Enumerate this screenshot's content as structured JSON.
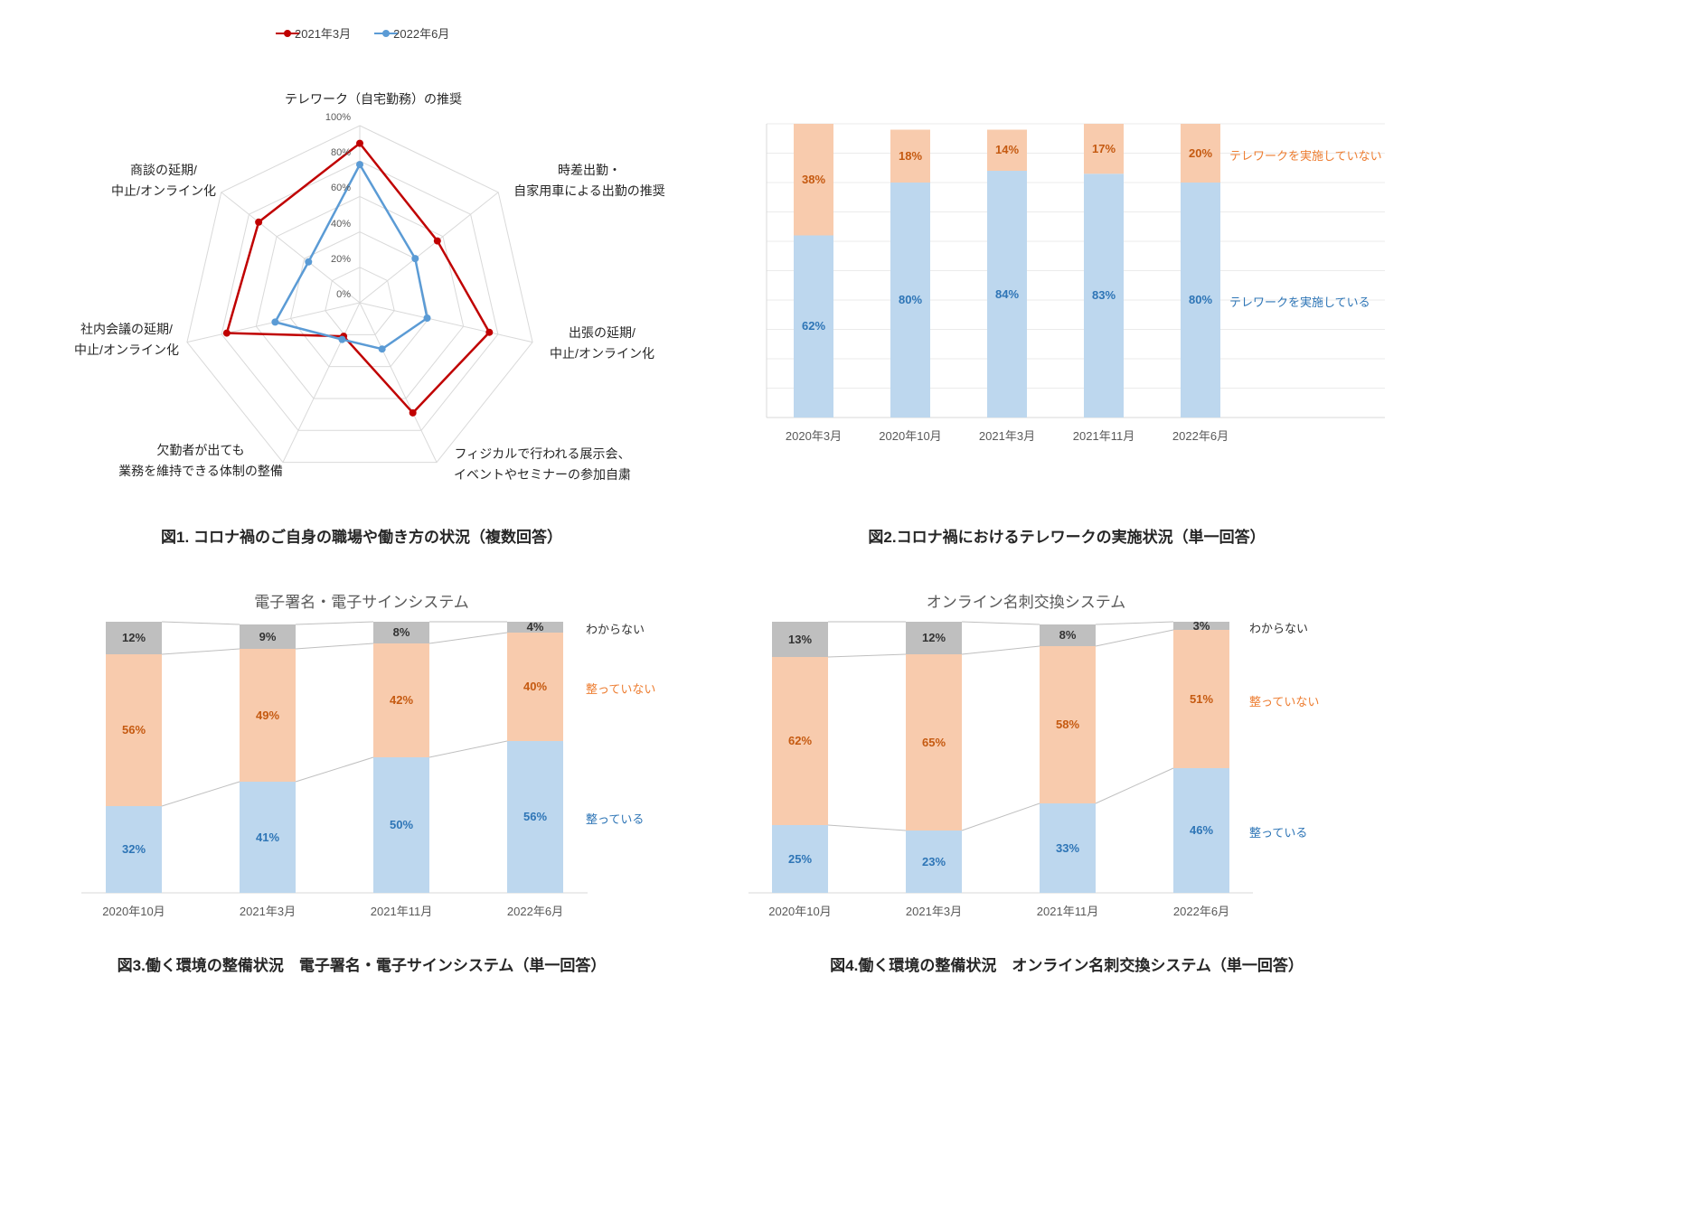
{
  "page": {
    "background": "#ffffff"
  },
  "colors": {
    "red_series": "#c00000",
    "blue_series": "#5b9bd5",
    "bar_blue": "#bdd7ee",
    "bar_orange": "#f8cbad",
    "bar_gray": "#bfbfbf",
    "blue_label": "#2e75b6",
    "orange_label": "#c55a11",
    "orange_annotation": "#ed7d31",
    "grid": "#d9d9d9",
    "text_dark": "#262626",
    "text_gray": "#595959"
  },
  "chart_data": [
    {
      "id": "fig1",
      "type": "radar",
      "caption": "図1. コロナ禍のご自身の職場や働き方の状況（複数回答）",
      "rmax": 100,
      "ticks": [
        "0%",
        "20%",
        "40%",
        "60%",
        "80%",
        "100%"
      ],
      "axes": [
        {
          "lines": [
            "テレワーク（自宅勤務）の推奨"
          ]
        },
        {
          "lines": [
            "時差出勤・",
            "自家用車による出勤の推奨"
          ]
        },
        {
          "lines": [
            "出張の延期/",
            "中止/オンライン化"
          ]
        },
        {
          "lines": [
            "フィジカルで行われる展示会、",
            "イベントやセミナーの参加自粛"
          ]
        },
        {
          "lines": [
            "欠勤者が出ても",
            "業務を維持できる体制の整備"
          ]
        },
        {
          "lines": [
            "社内会議の延期/",
            "中止/オンライン化"
          ]
        },
        {
          "lines": [
            "商談の延期/",
            "中止/オンライン化"
          ]
        }
      ],
      "series": [
        {
          "name": "2021年3月",
          "color": "#c00000",
          "values": [
            90,
            56,
            75,
            69,
            21,
            77,
            73
          ]
        },
        {
          "name": "2022年6月",
          "color": "#5b9bd5",
          "values": [
            78,
            40,
            39,
            29,
            23,
            49,
            37
          ]
        }
      ],
      "legend_position": "top"
    },
    {
      "id": "fig2",
      "type": "bar",
      "variant": "stacked",
      "caption": "図2.コロナ禍におけるテレワークの実施状況（単一回答）",
      "categories": [
        "2020年3月",
        "2020年10月",
        "2021年3月",
        "2021年11月",
        "2022年6月"
      ],
      "series": [
        {
          "name": "テレワークを実施している",
          "fill": "#bdd7ee",
          "label_color": "#2e75b6",
          "name_color": "#2e75b6",
          "values": [
            62,
            80,
            84,
            83,
            80
          ]
        },
        {
          "name": "テレワークを実施していない",
          "fill": "#f8cbad",
          "label_color": "#c55a11",
          "name_color": "#ed7d31",
          "values": [
            38,
            18,
            14,
            17,
            20
          ]
        }
      ],
      "ylim": [
        0,
        100
      ],
      "grid": true
    },
    {
      "id": "fig3",
      "type": "bar",
      "variant": "100%-stacked",
      "title": "電子署名・電子サインシステム",
      "caption": "図3.働く環境の整備状況　電子署名・電子サインシステム（単一回答）",
      "categories": [
        "2020年10月",
        "2021年3月",
        "2021年11月",
        "2022年6月"
      ],
      "series": [
        {
          "name": "整っている",
          "fill": "#bdd7ee",
          "label_color": "#2e75b6",
          "name_color": "#2e75b6",
          "values": [
            32,
            41,
            50,
            56
          ]
        },
        {
          "name": "整っていない",
          "fill": "#f8cbad",
          "label_color": "#c55a11",
          "name_color": "#ed7d31",
          "values": [
            56,
            49,
            42,
            40
          ]
        },
        {
          "name": "わからない",
          "fill": "#bfbfbf",
          "label_color": "#333333",
          "name_color": "#333333",
          "values": [
            12,
            9,
            8,
            4
          ]
        }
      ],
      "ylim": [
        0,
        100
      ],
      "grid": false
    },
    {
      "id": "fig4",
      "type": "bar",
      "variant": "100%-stacked",
      "title": "オンライン名刺交換システム",
      "caption": "図4.働く環境の整備状況　オンライン名刺交換システム（単一回答）",
      "categories": [
        "2020年10月",
        "2021年3月",
        "2021年11月",
        "2022年6月"
      ],
      "series": [
        {
          "name": "整っている",
          "fill": "#bdd7ee",
          "label_color": "#2e75b6",
          "name_color": "#2e75b6",
          "values": [
            25,
            23,
            33,
            46
          ]
        },
        {
          "name": "整っていない",
          "fill": "#f8cbad",
          "label_color": "#c55a11",
          "name_color": "#ed7d31",
          "values": [
            62,
            65,
            58,
            51
          ]
        },
        {
          "name": "わからない",
          "fill": "#bfbfbf",
          "label_color": "#333333",
          "name_color": "#333333",
          "values": [
            13,
            12,
            8,
            3
          ]
        }
      ],
      "ylim": [
        0,
        100
      ],
      "grid": false
    }
  ]
}
